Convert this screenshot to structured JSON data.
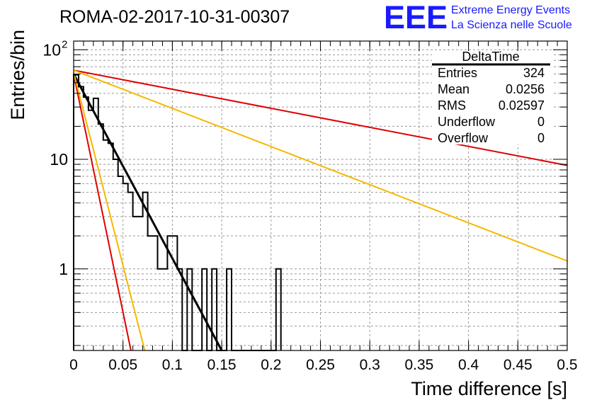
{
  "title": "ROMA-02-2017-10-31-00307",
  "logo": {
    "mark": "EEE",
    "line1": "Extreme Energy Events",
    "line2": "La Scienza nelle Scuole",
    "color": "#1a1aff"
  },
  "stats": {
    "name": "DeltaTime",
    "rows": [
      {
        "label": "Entries",
        "value": "324"
      },
      {
        "label": "Mean",
        "value": "0.0256"
      },
      {
        "label": "RMS",
        "value": "0.02597"
      },
      {
        "label": "Underflow",
        "value": "0"
      },
      {
        "label": "Overflow",
        "value": "0"
      }
    ]
  },
  "chart_data": {
    "type": "histogram",
    "xlabel": "Time difference [s]",
    "ylabel": "Entries/bin",
    "xlim": [
      0,
      0.5
    ],
    "ylim": [
      0.18,
      120
    ],
    "yscale": "log",
    "grid": true,
    "x_ticks": [
      "0",
      "0.05",
      "0.1",
      "0.15",
      "0.2",
      "0.25",
      "0.3",
      "0.35",
      "0.4",
      "0.45",
      "0.5"
    ],
    "y_ticks": [
      {
        "value": 1,
        "label": "1"
      },
      {
        "value": 10,
        "label": "10"
      },
      {
        "value": 100,
        "label": "10",
        "exp": "2"
      }
    ],
    "bin_width": 0.005,
    "histogram_counts": [
      59,
      46,
      37,
      28,
      36,
      21,
      15,
      14,
      10,
      7,
      6,
      5,
      3,
      3,
      5,
      2,
      2,
      1,
      1,
      2,
      2,
      1,
      0,
      1,
      0,
      0,
      1,
      0,
      1,
      0,
      0,
      1,
      0,
      0,
      0,
      0,
      0,
      0,
      0,
      0,
      0,
      1
    ],
    "curves": [
      {
        "color": "#000000",
        "points": [
          [
            0,
            60
          ],
          [
            0.15,
            0.18
          ]
        ]
      },
      {
        "color": "#e00000",
        "points": [
          [
            0,
            60
          ],
          [
            0.058,
            0.18
          ]
        ]
      },
      {
        "color": "#e00000",
        "points": [
          [
            0,
            65
          ],
          [
            0.5,
            8.8
          ]
        ]
      },
      {
        "color": "#f5b800",
        "points": [
          [
            0,
            62
          ],
          [
            0.072,
            0.18
          ]
        ]
      },
      {
        "color": "#f5b800",
        "points": [
          [
            0,
            65
          ],
          [
            0.5,
            1.18
          ]
        ]
      }
    ]
  }
}
